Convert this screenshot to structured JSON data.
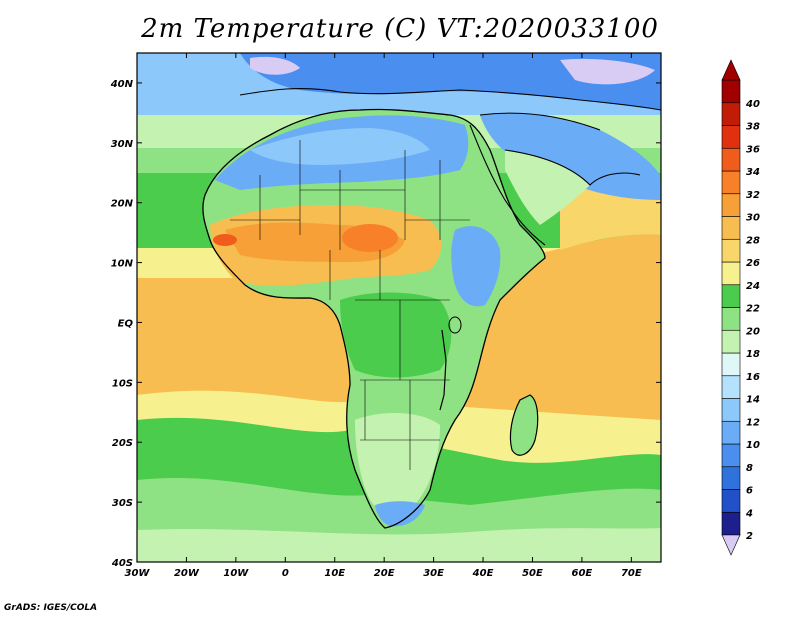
{
  "title": "2m Temperature (C) VT:2020033100",
  "footer": "GrADS: IGES/COLA",
  "map": {
    "region": "Africa",
    "lon_range": [
      -30,
      76
    ],
    "lat_range": [
      -40,
      45
    ],
    "x_ticks": [
      "30W",
      "20W",
      "10W",
      "0",
      "10E",
      "20E",
      "30E",
      "40E",
      "50E",
      "60E",
      "70E"
    ],
    "y_ticks": [
      "40S",
      "30S",
      "20S",
      "10S",
      "EQ",
      "10N",
      "20N",
      "30N",
      "40N"
    ]
  },
  "colorbar": {
    "labels": [
      "2",
      "4",
      "6",
      "8",
      "10",
      "12",
      "14",
      "16",
      "18",
      "20",
      "22",
      "24",
      "26",
      "28",
      "30",
      "32",
      "34",
      "36",
      "38",
      "40"
    ],
    "colors": [
      "#1c1f8c",
      "#2150c8",
      "#2f72dc",
      "#4a8ff0",
      "#6aacf6",
      "#8cc8fa",
      "#b4e2fc",
      "#e0f7f7",
      "#c4f2b0",
      "#8ee284",
      "#4ccc4c",
      "#f6f18e",
      "#f8d66a",
      "#f8bd50",
      "#f8a038",
      "#f88028",
      "#f05c1c",
      "#e03010",
      "#c01c08",
      "#a00000"
    ],
    "low_color": "#d8ccf4",
    "high_color": "#a00000"
  }
}
